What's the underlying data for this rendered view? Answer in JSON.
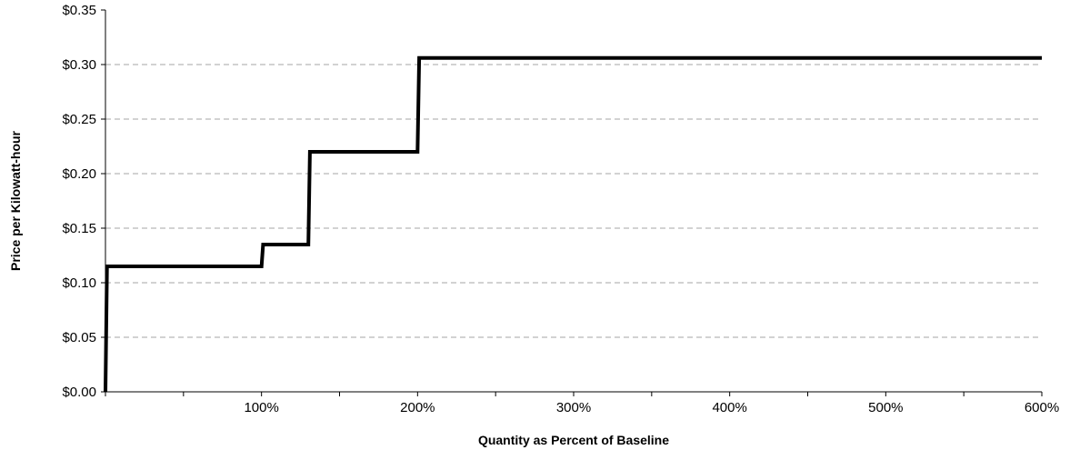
{
  "chart_data": {
    "type": "line",
    "title": "",
    "xlabel": "Quantity as Percent of Baseline",
    "ylabel": "Price per Kilowatt-hour",
    "xlim": [
      0,
      600
    ],
    "ylim": [
      0,
      0.35
    ],
    "grid": true,
    "legend": "none",
    "y_ticks": [
      {
        "value": 0.0,
        "label": "$0.00"
      },
      {
        "value": 0.05,
        "label": "$0.05"
      },
      {
        "value": 0.1,
        "label": "$0.10"
      },
      {
        "value": 0.15,
        "label": "$0.15"
      },
      {
        "value": 0.2,
        "label": "$0.20"
      },
      {
        "value": 0.25,
        "label": "$0.25"
      },
      {
        "value": 0.3,
        "label": "$0.30"
      },
      {
        "value": 0.35,
        "label": "$0.35"
      }
    ],
    "x_ticks": [
      {
        "value": 100,
        "label": "100%"
      },
      {
        "value": 200,
        "label": "200%"
      },
      {
        "value": 300,
        "label": "300%"
      },
      {
        "value": 400,
        "label": "400%"
      },
      {
        "value": 500,
        "label": "500%"
      },
      {
        "value": 600,
        "label": "600%"
      }
    ],
    "series": [
      {
        "color": "#000000",
        "x": [
          0,
          1,
          100,
          101,
          130,
          131,
          200,
          201,
          600
        ],
        "y": [
          0.0,
          0.115,
          0.115,
          0.135,
          0.135,
          0.22,
          0.22,
          0.306,
          0.306
        ]
      }
    ]
  }
}
